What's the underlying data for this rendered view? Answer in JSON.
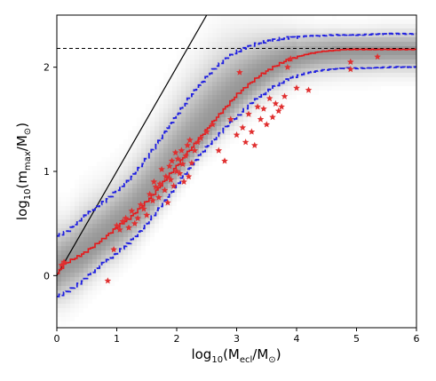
{
  "chart_data": {
    "type": "scatter",
    "xlabel": {
      "main": "log",
      "sub": "10",
      "rest": "(M",
      "sub2": "ecl",
      "rest2": "/M",
      "sub3": "⊙",
      "close": ")"
    },
    "ylabel": {
      "main": "log",
      "sub": "10",
      "rest": "(m",
      "sub2": "max",
      "rest2": "/M",
      "sub3": "⊙",
      "close": ")"
    },
    "xlim": [
      0,
      6
    ],
    "ylim": [
      -0.5,
      2.5
    ],
    "x_ticks": [
      "0",
      "1",
      "2",
      "3",
      "4",
      "5",
      "6"
    ],
    "y_ticks": [
      "0",
      "1",
      "2"
    ],
    "reference_line": {
      "style": "solid",
      "color": "#000000",
      "x": [
        0,
        2.5
      ],
      "y": [
        0,
        2.5
      ]
    },
    "upper_limit": {
      "style": "dashed",
      "color": "#000000",
      "y": 2.18
    },
    "median_curve": {
      "color": "#e41a1c",
      "x": [
        0,
        0.1,
        0.2,
        0.4,
        0.6,
        0.8,
        1.0,
        1.2,
        1.4,
        1.6,
        1.8,
        2.0,
        2.2,
        2.4,
        2.6,
        2.8,
        3.0,
        3.2,
        3.4,
        3.6,
        3.8,
        4.0,
        4.2,
        4.4,
        4.6,
        4.8,
        5.0,
        5.5,
        6.0
      ],
      "y": [
        0.02,
        0.1,
        0.14,
        0.2,
        0.28,
        0.37,
        0.47,
        0.55,
        0.66,
        0.78,
        0.92,
        1.06,
        1.2,
        1.34,
        1.48,
        1.61,
        1.74,
        1.84,
        1.93,
        2.0,
        2.06,
        2.1,
        2.13,
        2.15,
        2.16,
        2.17,
        2.17,
        2.17,
        2.17
      ]
    },
    "upper_percentile": {
      "color": "#1f1fe0",
      "x": [
        0,
        0.2,
        0.4,
        0.6,
        0.8,
        1.0,
        1.2,
        1.4,
        1.6,
        1.8,
        2.0,
        2.2,
        2.4,
        2.6,
        2.8,
        3.0,
        3.2,
        3.4,
        3.6,
        3.8,
        4.0,
        4.2,
        4.4,
        4.6,
        4.8,
        5.0,
        5.5,
        6.0
      ],
      "y": [
        0.38,
        0.44,
        0.55,
        0.64,
        0.72,
        0.82,
        0.92,
        1.06,
        1.22,
        1.39,
        1.55,
        1.71,
        1.85,
        1.98,
        2.08,
        2.15,
        2.2,
        2.24,
        2.26,
        2.28,
        2.29,
        2.3,
        2.3,
        2.31,
        2.31,
        2.31,
        2.32,
        2.32
      ]
    },
    "lower_percentile": {
      "color": "#1f1fe0",
      "x": [
        0,
        0.2,
        0.4,
        0.6,
        0.8,
        1.0,
        1.2,
        1.4,
        1.6,
        1.8,
        2.0,
        2.2,
        2.4,
        2.6,
        2.8,
        3.0,
        3.2,
        3.4,
        3.6,
        3.8,
        4.0,
        4.2,
        4.4,
        4.6,
        4.8,
        5.0,
        5.5,
        6.0
      ],
      "y": [
        -0.2,
        -0.14,
        -0.06,
        0.04,
        0.14,
        0.22,
        0.32,
        0.44,
        0.58,
        0.73,
        0.88,
        1.03,
        1.18,
        1.3,
        1.42,
        1.53,
        1.64,
        1.73,
        1.81,
        1.87,
        1.92,
        1.95,
        1.97,
        1.98,
        1.99,
        1.99,
        2.0,
        2.0
      ]
    },
    "observed_points": {
      "marker": "star",
      "color": "#e03030",
      "x": [
        0.08,
        0.12,
        0.85,
        0.95,
        1.0,
        1.05,
        1.1,
        1.15,
        1.2,
        1.25,
        1.3,
        1.35,
        1.4,
        1.45,
        1.5,
        1.55,
        1.6,
        1.62,
        1.65,
        1.7,
        1.72,
        1.75,
        1.8,
        1.82,
        1.85,
        1.88,
        1.9,
        1.92,
        1.95,
        1.98,
        2.0,
        2.02,
        2.05,
        2.08,
        2.1,
        2.12,
        2.15,
        2.18,
        2.2,
        2.22,
        2.25,
        2.3,
        2.35,
        2.4,
        2.5,
        2.6,
        2.7,
        2.8,
        2.9,
        3.0,
        3.05,
        3.1,
        3.15,
        3.2,
        3.25,
        3.3,
        3.35,
        3.4,
        3.45,
        3.5,
        3.55,
        3.6,
        3.65,
        3.7,
        3.75,
        3.8,
        3.85,
        3.9,
        4.0,
        4.2,
        4.9,
        4.9,
        5.35
      ],
      "y": [
        0.1,
        0.13,
        -0.05,
        0.25,
        0.48,
        0.44,
        0.52,
        0.55,
        0.46,
        0.62,
        0.5,
        0.55,
        0.68,
        0.64,
        0.58,
        0.78,
        0.72,
        0.9,
        0.85,
        0.75,
        0.88,
        1.02,
        0.82,
        0.95,
        0.7,
        1.05,
        0.92,
        1.1,
        0.86,
        1.18,
        1.0,
        1.12,
        0.98,
        1.2,
        1.07,
        0.9,
        1.15,
        1.25,
        0.95,
        1.3,
        1.08,
        1.2,
        1.28,
        1.32,
        1.38,
        1.45,
        1.2,
        1.1,
        1.5,
        1.35,
        1.95,
        1.42,
        1.28,
        1.55,
        1.38,
        1.25,
        1.62,
        1.5,
        1.6,
        1.45,
        1.7,
        1.52,
        1.65,
        1.58,
        1.62,
        1.72,
        2.0,
        2.08,
        1.8,
        1.78,
        2.05,
        1.98,
        2.1
      ]
    }
  }
}
